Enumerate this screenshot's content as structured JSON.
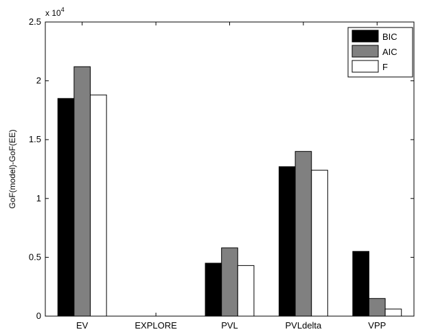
{
  "chart_data": {
    "type": "bar",
    "categories": [
      "EV",
      "EXPLORE",
      "PVL",
      "PVLdelta",
      "VPP"
    ],
    "series": [
      {
        "name": "BIC",
        "values": [
          18500,
          0,
          4500,
          12700,
          5500
        ],
        "color": "#000000"
      },
      {
        "name": "AIC",
        "values": [
          21200,
          0,
          5800,
          14000,
          1500
        ],
        "color": "#808080"
      },
      {
        "name": "F",
        "values": [
          18800,
          0,
          4300,
          12400,
          600
        ],
        "color": "#ffffff"
      }
    ],
    "ylabel": "GoF(model)-GoF(EE)",
    "ylim": [
      0,
      25000
    ],
    "y_ticks": [
      "0",
      "0.5",
      "1",
      "1.5",
      "2",
      "2.5"
    ],
    "y_tick_values": [
      0,
      5000,
      10000,
      15000,
      20000,
      25000
    ],
    "y_exponent_base": "x 10",
    "y_exponent_power": "4",
    "legend_position": "top-right",
    "grid": false
  }
}
